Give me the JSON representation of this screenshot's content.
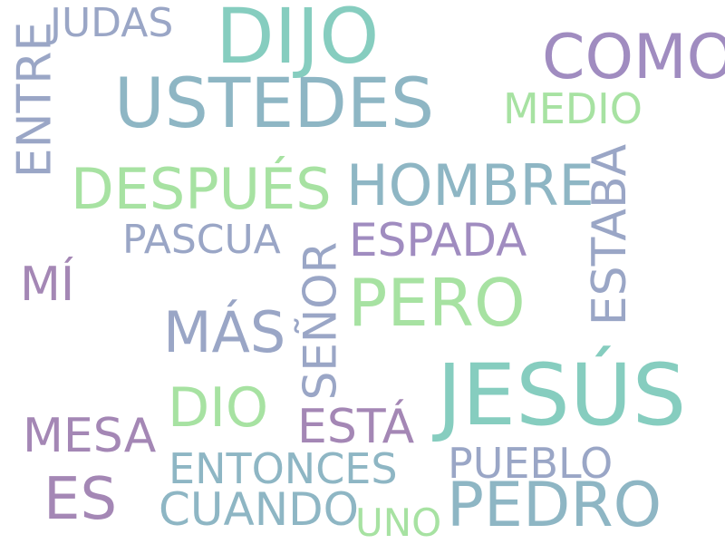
{
  "word_cloud": {
    "background_color": "#ffffff",
    "words": [
      {
        "text": "DIJO",
        "color": "#86cdbf"
      },
      {
        "text": "JUDAS",
        "color": "#9aa6c6"
      },
      {
        "text": "ENTRE",
        "color": "#9aa6c6"
      },
      {
        "text": "USTEDES",
        "color": "#8eb6c4"
      },
      {
        "text": "COMO",
        "color": "#a08cc0"
      },
      {
        "text": "MEDIO",
        "color": "#a7e2a2"
      },
      {
        "text": "DESPUÉS",
        "color": "#a7e2a2"
      },
      {
        "text": "HOMBRE",
        "color": "#8eb6c4"
      },
      {
        "text": "ESTABA",
        "color": "#9aa6c6"
      },
      {
        "text": "PASCUA",
        "color": "#9aa6c6"
      },
      {
        "text": "ESPADA",
        "color": "#a08cc0"
      },
      {
        "text": "MÍ",
        "color": "#a487b5"
      },
      {
        "text": "SEÑOR",
        "color": "#9aa6c6"
      },
      {
        "text": "PERO",
        "color": "#a7e2a2"
      },
      {
        "text": "MÁS",
        "color": "#9aa6c6"
      },
      {
        "text": "JESÚS",
        "color": "#86cdbf"
      },
      {
        "text": "DIO",
        "color": "#a7e2a2"
      },
      {
        "text": "ESTÁ",
        "color": "#a487b5"
      },
      {
        "text": "MESA",
        "color": "#a487b5"
      },
      {
        "text": "ENTONCES",
        "color": "#8eb6c4"
      },
      {
        "text": "PUEBLO",
        "color": "#9aa6c6"
      },
      {
        "text": "ES",
        "color": "#a487b5"
      },
      {
        "text": "CUANDO",
        "color": "#8eb6c4"
      },
      {
        "text": "UNO",
        "color": "#a7e2a2"
      },
      {
        "text": "PEDRO",
        "color": "#8eb6c4"
      }
    ]
  }
}
